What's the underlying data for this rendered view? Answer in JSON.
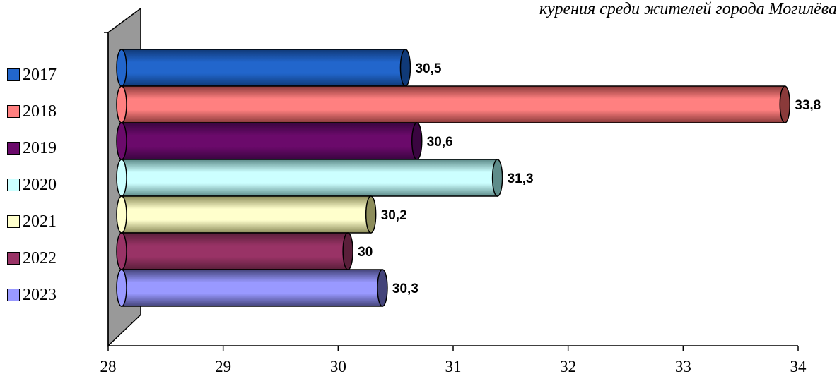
{
  "chart_data": {
    "type": "bar",
    "orientation": "horizontal",
    "style": "3d-cylinder",
    "title": "курения среди жителей города Могилёва",
    "categories": [
      "2017",
      "2018",
      "2019",
      "2020",
      "2021",
      "2022",
      "2023"
    ],
    "values": [
      30.5,
      33.8,
      30.6,
      31.3,
      30.2,
      30,
      30.3
    ],
    "value_labels": [
      "30,5",
      "33,8",
      "30,6",
      "31,3",
      "30,2",
      "30",
      "30,3"
    ],
    "xlim": [
      28,
      34
    ],
    "x_ticks": [
      "28",
      "29",
      "30",
      "31",
      "32",
      "33",
      "34"
    ],
    "xlabel": "",
    "ylabel": "",
    "grid": false,
    "legend_position": "left",
    "colors": [
      "#2266cc",
      "#ff8080",
      "#6b0a6b",
      "#ccffff",
      "#ffffcc",
      "#993366",
      "#9999ff"
    ],
    "dark_colors": [
      "#103a78",
      "#8a3a3a",
      "#3a0540",
      "#5e8c8a",
      "#8c8c5a",
      "#5a1f3a",
      "#44447a"
    ],
    "wall_color": "#999999"
  }
}
